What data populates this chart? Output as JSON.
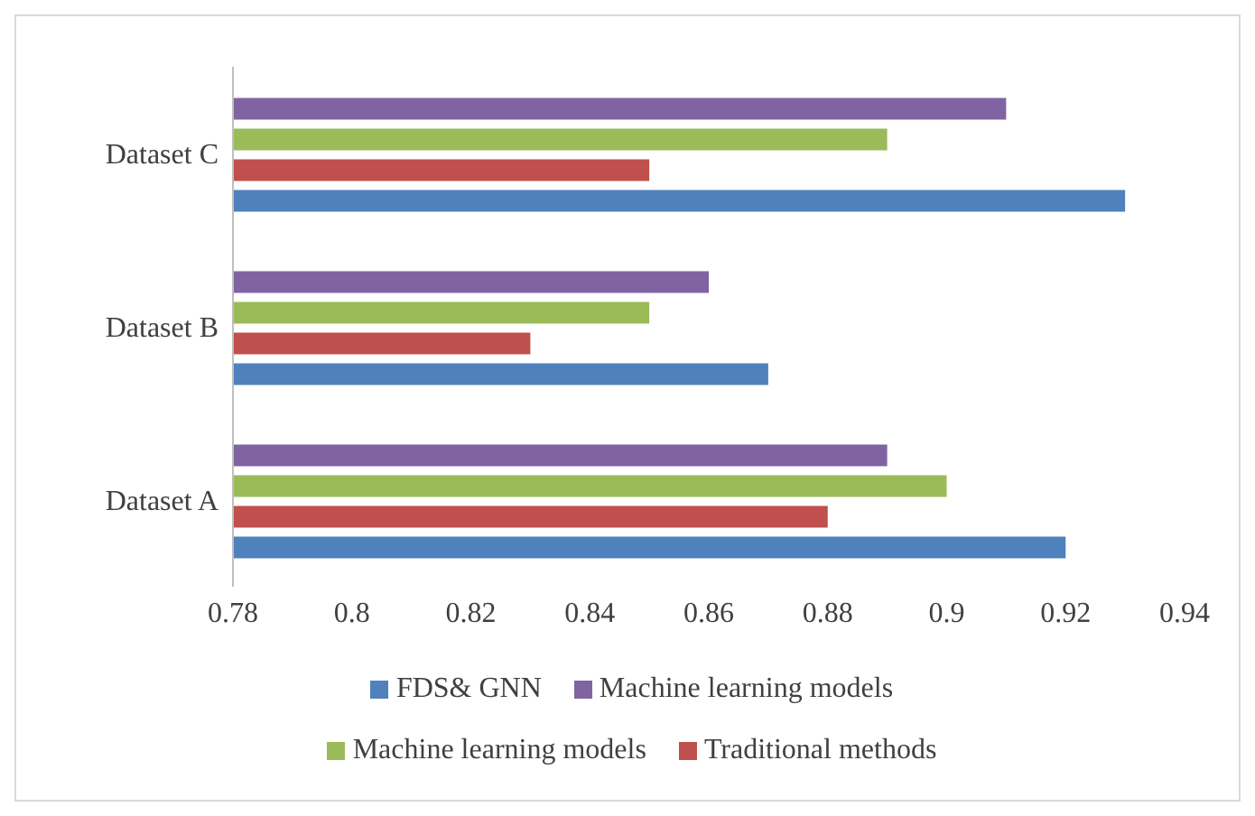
{
  "chart_data": {
    "type": "bar",
    "orientation": "horizontal",
    "categories": [
      "Dataset C",
      "Dataset B",
      "Dataset A"
    ],
    "series": [
      {
        "name": "Machine learning models",
        "color": "#8064a2",
        "values": [
          0.91,
          0.86,
          0.89
        ]
      },
      {
        "name": "Machine learning models",
        "color": "#9bbb59",
        "values": [
          0.89,
          0.85,
          0.9
        ]
      },
      {
        "name": "Traditional methods",
        "color": "#c0504d",
        "values": [
          0.85,
          0.83,
          0.88
        ]
      },
      {
        "name": "FDS& GNN",
        "color": "#4f81bd",
        "values": [
          0.93,
          0.87,
          0.92
        ]
      }
    ],
    "xlim": [
      0.78,
      0.94
    ],
    "xticks": [
      0.78,
      0.8,
      0.82,
      0.84,
      0.86,
      0.88,
      0.9,
      0.92,
      0.94
    ],
    "grid": false,
    "legend": "bottom"
  }
}
